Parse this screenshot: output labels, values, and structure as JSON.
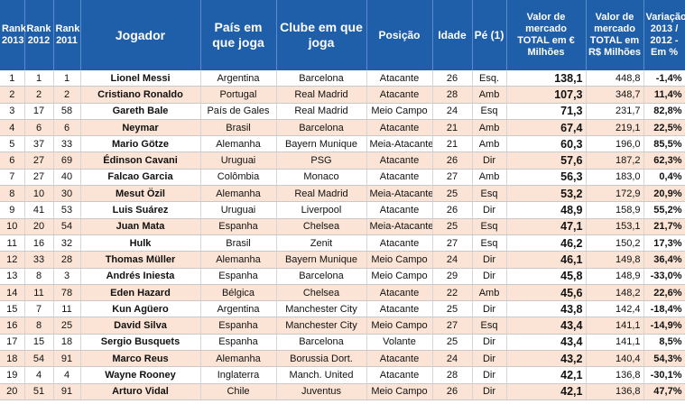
{
  "table": {
    "header": [
      "Rank 2013",
      "Rank 2012",
      "Rank 2011",
      "Jogador",
      "País em que joga",
      "Clube em que joga",
      "Posição",
      "Idade",
      "Pé (1)",
      "Valor de mercado TOTAL em € Milhões",
      "Valor de mercado TOTAL em R$ Milhões",
      "Variação 2013 / 2012 - Em %"
    ],
    "rows": [
      [
        "1",
        "1",
        "1",
        "Lionel Messi",
        "Argentina",
        "Barcelona",
        "Atacante",
        "26",
        "Esq.",
        "138,1",
        "448,8",
        "-1,4%"
      ],
      [
        "2",
        "2",
        "2",
        "Cristiano Ronaldo",
        "Portugal",
        "Real Madrid",
        "Atacante",
        "28",
        "Amb",
        "107,3",
        "348,7",
        "11,4%"
      ],
      [
        "3",
        "17",
        "58",
        "Gareth Bale",
        "País de Gales",
        "Real Madrid",
        "Meio Campo",
        "24",
        "Esq",
        "71,3",
        "231,7",
        "82,8%"
      ],
      [
        "4",
        "6",
        "6",
        "Neymar",
        "Brasil",
        "Barcelona",
        "Atacante",
        "21",
        "Amb",
        "67,4",
        "219,1",
        "22,5%"
      ],
      [
        "5",
        "37",
        "33",
        "Mario Götze",
        "Alemanha",
        "Bayern Munique",
        "Meia-Atacante",
        "21",
        "Amb",
        "60,3",
        "196,0",
        "85,5%"
      ],
      [
        "6",
        "27",
        "69",
        "Édinson Cavani",
        "Uruguai",
        "PSG",
        "Atacante",
        "26",
        "Dir",
        "57,6",
        "187,2",
        "62,3%"
      ],
      [
        "7",
        "27",
        "40",
        "Falcao Garcia",
        "Colômbia",
        "Monaco",
        "Atacante",
        "27",
        "Amb",
        "56,3",
        "183,0",
        "0,4%"
      ],
      [
        "8",
        "10",
        "30",
        "Mesut Özil",
        "Alemanha",
        "Real Madrid",
        "Meia-Atacante",
        "25",
        "Esq",
        "53,2",
        "172,9",
        "20,9%"
      ],
      [
        "9",
        "41",
        "53",
        "Luis Suárez",
        "Uruguai",
        "Liverpool",
        "Atacante",
        "26",
        "Dir",
        "48,9",
        "158,9",
        "55,2%"
      ],
      [
        "10",
        "20",
        "54",
        "Juan Mata",
        "Espanha",
        "Chelsea",
        "Meia-Atacante",
        "25",
        "Esq",
        "47,1",
        "153,1",
        "21,7%"
      ],
      [
        "11",
        "16",
        "32",
        "Hulk",
        "Brasil",
        "Zenit",
        "Atacante",
        "27",
        "Esq",
        "46,2",
        "150,2",
        "17,3%"
      ],
      [
        "12",
        "33",
        "28",
        "Thomas Müller",
        "Alemanha",
        "Bayern Munique",
        "Meio Campo",
        "24",
        "Dir",
        "46,1",
        "149,8",
        "36,4%"
      ],
      [
        "13",
        "8",
        "3",
        "Andrés Iniesta",
        "Espanha",
        "Barcelona",
        "Meio Campo",
        "29",
        "Dir",
        "45,8",
        "148,9",
        "-33,0%"
      ],
      [
        "14",
        "11",
        "78",
        "Eden Hazard",
        "Bélgica",
        "Chelsea",
        "Atacante",
        "22",
        "Amb",
        "45,6",
        "148,2",
        "22,6%"
      ],
      [
        "15",
        "7",
        "11",
        "Kun Agüero",
        "Argentina",
        "Manchester City",
        "Atacante",
        "25",
        "Dir",
        "43,8",
        "142,4",
        "-18,4%"
      ],
      [
        "16",
        "8",
        "25",
        "David Silva",
        "Espanha",
        "Manchester City",
        "Meio Campo",
        "27",
        "Esq",
        "43,4",
        "141,1",
        "-14,9%"
      ],
      [
        "17",
        "15",
        "18",
        "Sergio Busquets",
        "Espanha",
        "Barcelona",
        "Volante",
        "25",
        "Dir",
        "43,4",
        "141,1",
        "8,5%"
      ],
      [
        "18",
        "54",
        "91",
        "Marco Reus",
        "Alemanha",
        "Borussia Dort.",
        "Atacante",
        "24",
        "Dir",
        "43,2",
        "140,4",
        "54,3%"
      ],
      [
        "19",
        "4",
        "4",
        "Wayne Rooney",
        "Inglaterra",
        "Manch. United",
        "Atacante",
        "28",
        "Dir",
        "42,1",
        "136,8",
        "-30,1%"
      ],
      [
        "20",
        "51",
        "91",
        "Arturo Vidal",
        "Chile",
        "Juventus",
        "Meio Campo",
        "26",
        "Dir",
        "42,1",
        "136,8",
        "47,7%"
      ]
    ]
  }
}
